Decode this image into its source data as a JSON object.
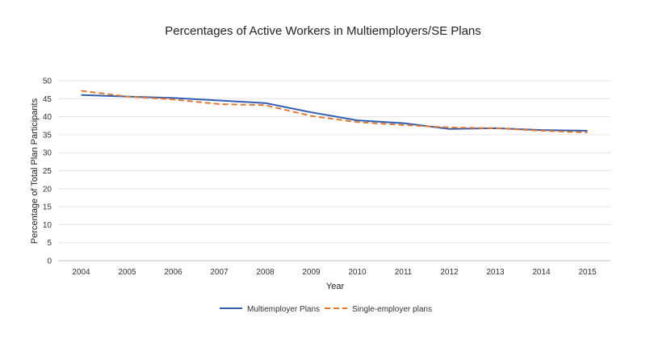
{
  "chart_data": {
    "type": "line",
    "title": "Percentages of Active Workers in Multiemployers/SE Plans",
    "xlabel": "Year",
    "ylabel": "Percentage of Total Plan Participants",
    "x": [
      "2004",
      "2005",
      "2006",
      "2007",
      "2008",
      "2009",
      "2010",
      "2011",
      "2012",
      "2013",
      "2014",
      "2015"
    ],
    "yticks": [
      "0",
      "5",
      "10",
      "15",
      "20",
      "25",
      "30",
      "35",
      "40",
      "45",
      "50"
    ],
    "ylim": [
      0,
      50
    ],
    "grid": true,
    "legend_position": "bottom",
    "series": [
      {
        "name": "Multiemployer Plans",
        "color": "#2e5fb4",
        "style": "solid",
        "values": [
          46,
          45.6,
          45.2,
          44.5,
          43.8,
          41.2,
          39,
          38.2,
          36.6,
          36.8,
          36.3,
          36.1
        ]
      },
      {
        "name": "Single-employer plans",
        "color": "#e8772e",
        "style": "dashed",
        "values": [
          47.2,
          45.6,
          44.8,
          43.5,
          43.2,
          40.2,
          38.5,
          37.7,
          37,
          36.8,
          36.1,
          35.6
        ]
      }
    ]
  }
}
